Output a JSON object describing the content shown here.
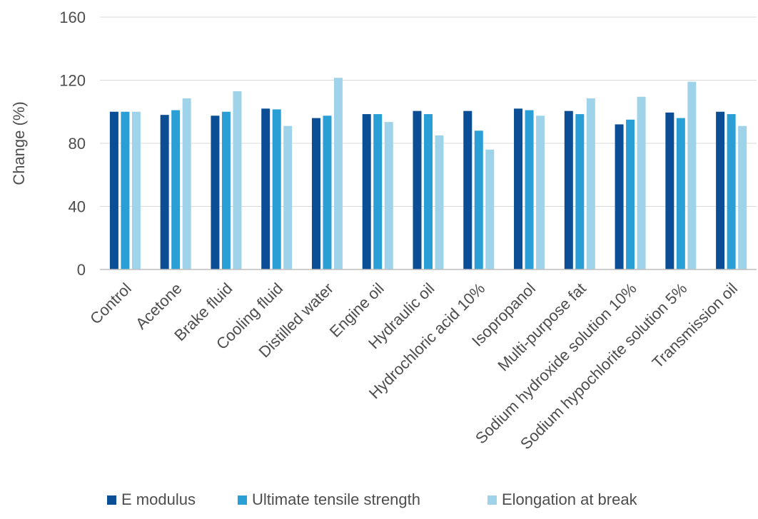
{
  "chart_data": {
    "type": "bar",
    "ylabel": "Change (%)",
    "ylim": [
      0,
      160
    ],
    "yticks": [
      0,
      40,
      80,
      120,
      160
    ],
    "grid": true,
    "legend_position": "bottom",
    "categories": [
      "Control",
      "Acetone",
      "Brake fluid",
      "Cooling fluid",
      "Distilled water",
      "Engine oil",
      "Hydraulic oil",
      "Hydrochloric acid 10%",
      "Isopropanol",
      "Multi-purpose fat",
      "Sodium hydroxide solution 10%",
      "Sodium hypochlorite solution 5%",
      "Transmission oil"
    ],
    "series": [
      {
        "name": "E modulus",
        "color": "#0b4e96",
        "values": [
          100,
          98,
          97.5,
          102,
          96,
          98.5,
          100.5,
          100.5,
          102,
          100.5,
          92,
          99.5,
          100
        ]
      },
      {
        "name": "Ultimate tensile strength",
        "color": "#2a9fd6",
        "values": [
          100,
          101,
          100,
          101.5,
          97.5,
          98.5,
          98.5,
          88,
          101,
          98.5,
          95,
          96,
          98.5
        ]
      },
      {
        "name": "Elongation at break",
        "color": "#9fd3ea",
        "values": [
          100,
          108.5,
          113,
          91,
          121.5,
          93.5,
          85,
          76,
          97.5,
          108.5,
          109.5,
          119,
          91
        ]
      }
    ]
  }
}
